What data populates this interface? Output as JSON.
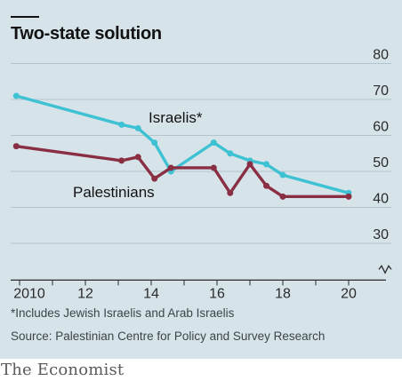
{
  "chart": {
    "title": "Two-state solution",
    "footnote": "*Includes Jewish Israelis and Arab Israelis",
    "source": "Source: Palestinian Centre for Policy and Survey Research",
    "brand": "The Economist"
  },
  "chart_data": {
    "type": "line",
    "title": "Two-state solution",
    "xlabel": "",
    "ylabel": "",
    "xlim": [
      2009.5,
      2020.5
    ],
    "ylim": [
      23,
      80
    ],
    "y_axis_break": true,
    "x_ticks": [
      2010,
      2012,
      2014,
      2016,
      2018,
      2020
    ],
    "x_tick_labels": [
      "2010",
      "12",
      "14",
      "16",
      "18",
      "20"
    ],
    "y_ticks": [
      30,
      40,
      50,
      60,
      70,
      80
    ],
    "y_tick_labels": [
      "30",
      "40",
      "50",
      "60",
      "70",
      "80"
    ],
    "grid": "horizontal",
    "legend": "direct labels on lines",
    "series": [
      {
        "name": "Israelis*",
        "color": "#3ec1d3",
        "x": [
          2009.9,
          2013.1,
          2013.6,
          2014.1,
          2014.6,
          2015.9,
          2016.4,
          2017.0,
          2017.5,
          2018.0,
          2020.0
        ],
        "y": [
          71,
          63,
          62,
          58,
          50,
          58,
          55,
          53,
          52,
          49,
          44
        ]
      },
      {
        "name": "Palestinians",
        "color": "#8a2f43",
        "x": [
          2009.9,
          2013.1,
          2013.6,
          2014.1,
          2014.6,
          2015.9,
          2016.4,
          2017.0,
          2017.5,
          2018.0,
          2020.0
        ],
        "y": [
          57,
          53,
          54,
          48,
          51,
          51,
          44,
          52,
          46,
          43,
          43
        ]
      }
    ]
  }
}
